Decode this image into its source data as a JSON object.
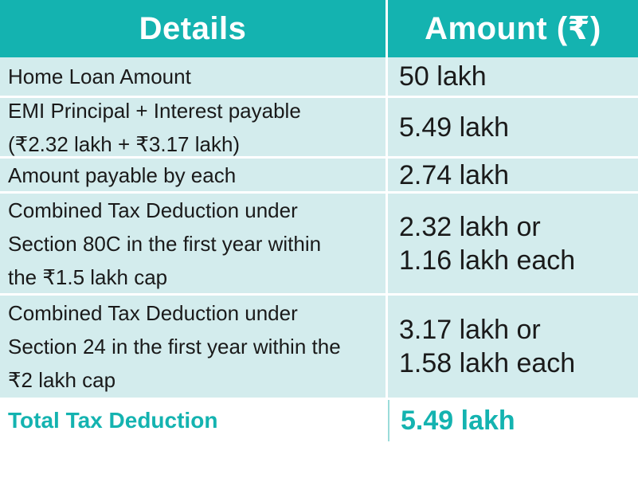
{
  "header": {
    "details": "Details",
    "amount": "Amount (₹)"
  },
  "rows": [
    {
      "label": "Home Loan Amount",
      "value": "50 lakh"
    },
    {
      "label": "EMI Principal + Interest payable\n(₹2.32 lakh + ₹3.17 lakh)",
      "value": "5.49 lakh"
    },
    {
      "label": "Amount payable by each",
      "value": "2.74 lakh"
    },
    {
      "label": "Combined Tax Deduction under\nSection 80C in the first year within\nthe ₹1.5 lakh cap",
      "value": "2.32 lakh or\n1.16 lakh each"
    },
    {
      "label": "Combined Tax Deduction under\nSection 24 in the first year within the\n₹2 lakh cap",
      "value": "3.17 lakh or\n1.58 lakh each"
    }
  ],
  "total": {
    "label": "Total Tax Deduction",
    "value": "5.49 lakh"
  },
  "colors": {
    "header_bg": "#14b3b0",
    "row_bg": "#d3eced",
    "accent": "#14b3b0"
  }
}
